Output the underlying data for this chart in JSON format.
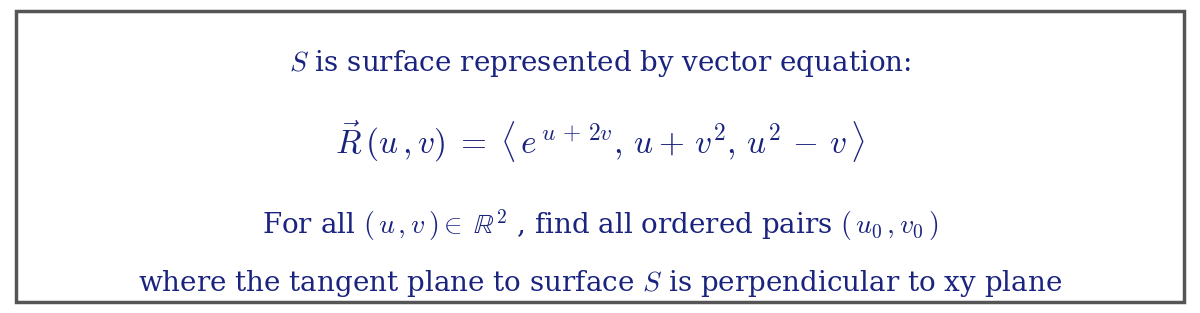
{
  "background_color": "#ffffff",
  "border_color": "#555555",
  "text_color_blue": "#1a237e",
  "figsize": [
    12.0,
    3.13
  ],
  "dpi": 100,
  "title_fontsize": 20,
  "body_fontsize": 20,
  "math_fontsize": 24
}
